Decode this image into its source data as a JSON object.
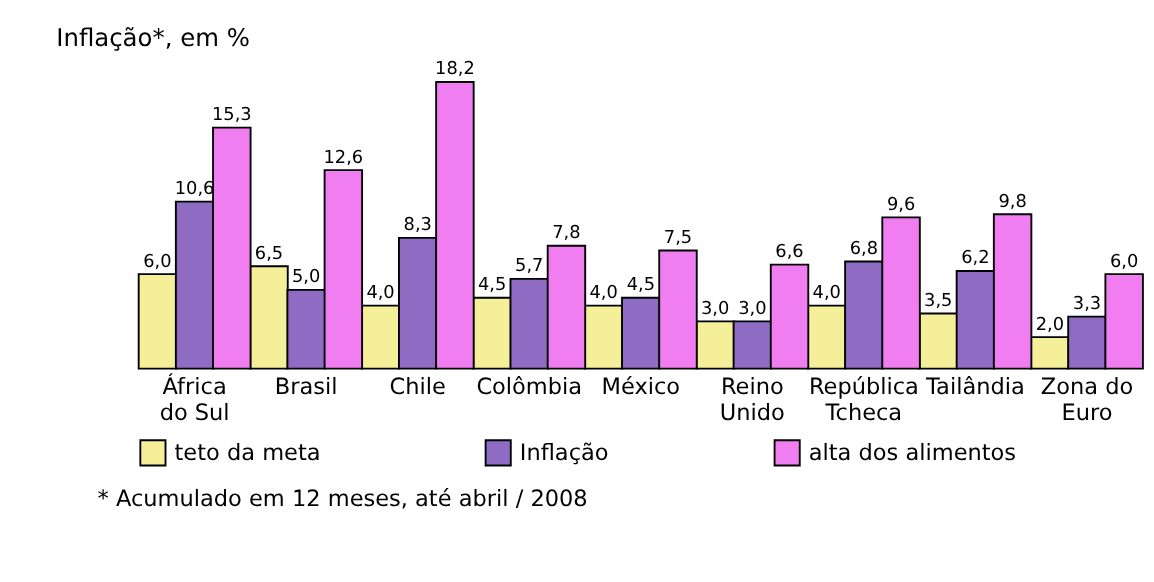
{
  "chart_data": {
    "type": "bar",
    "title": "Inflação*, em %",
    "categories": [
      "África do Sul",
      "Brasil",
      "Chile",
      "Colômbia",
      "México",
      "Reino Unido",
      "República Tcheca",
      "Tailândia",
      "Zona do Euro"
    ],
    "series": [
      {
        "name": "teto da meta",
        "color": "#f5ef9a",
        "values": [
          6.0,
          6.5,
          4.0,
          4.5,
          4.0,
          3.0,
          4.0,
          3.5,
          2.0
        ],
        "value_labels": [
          "6,0",
          "6,5",
          "4,0",
          "4,5",
          "4,0",
          "3,0",
          "4,0",
          "3,5",
          "2,0"
        ]
      },
      {
        "name": "Inflação",
        "color": "#8e6cc4",
        "values": [
          10.6,
          5.0,
          8.3,
          5.7,
          4.5,
          3.0,
          6.8,
          6.2,
          3.3
        ],
        "value_labels": [
          "10,6",
          "5,0",
          "8,3",
          "5,7",
          "4,5",
          "3,0",
          "6,8",
          "6,2",
          "3,3"
        ]
      },
      {
        "name": "alta dos alimentos",
        "color": "#f07ef0",
        "values": [
          15.3,
          12.6,
          18.2,
          7.8,
          7.5,
          6.6,
          9.6,
          9.8,
          6.0
        ],
        "value_labels": [
          "15,3",
          "12,6",
          "18,2",
          "7,8",
          "7,5",
          "6,6",
          "9,6",
          "9,8",
          "6,0"
        ]
      }
    ],
    "legend": "bottom",
    "grid": false,
    "annotations": [
      "* Acumulado em 12 meses, até abril / 2008"
    ]
  }
}
